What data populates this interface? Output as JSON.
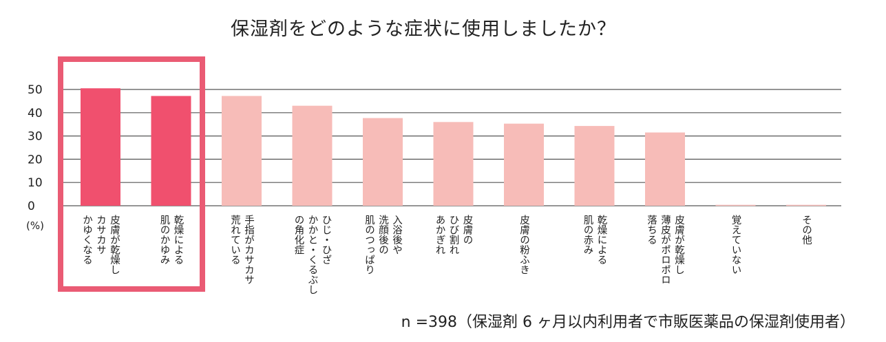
{
  "chart_data": {
    "type": "bar",
    "title": "保湿剤をどのような症状に使用しましたか？",
    "ylabel": "(%)",
    "ylim": [
      0,
      50
    ],
    "yticks": [
      "0",
      "10",
      "20",
      "30",
      "40",
      "50"
    ],
    "grid": true,
    "categories": [
      [
        "皮膚が乾燥し",
        "カサカサ",
        "かゆくなる"
      ],
      [
        "乾燥による",
        "肌のかゆみ"
      ],
      [
        "手指がカサカサ",
        "荒れている"
      ],
      [
        "ひじ・ひざ",
        "かかと・くるぶし",
        "の角化症"
      ],
      [
        "入浴後や",
        "洗顔後の",
        "肌のつっぱり"
      ],
      [
        "皮膚の",
        "ひび割れ",
        "あかぎれ"
      ],
      [
        "皮膚の粉ふき"
      ],
      [
        "乾燥による",
        "肌の赤み"
      ],
      [
        "皮膚が乾燥し",
        "薄皮がポロポロ",
        "落ちる"
      ],
      [
        "覚えていない"
      ],
      [
        "その他"
      ]
    ],
    "values": [
      50.5,
      47.2,
      47.2,
      43.0,
      37.7,
      36.0,
      35.3,
      34.3,
      31.5,
      0.4,
      0.4
    ],
    "highlighted": [
      true,
      true,
      false,
      false,
      false,
      false,
      false,
      false,
      false,
      false,
      false
    ],
    "colors": {
      "highlight": "#f0506e",
      "normal": "#f7bcb8",
      "box": "#ea5b74",
      "grid": "#555555"
    },
    "note": "n =398（保湿剤 6 ヶ月以内利用者で市販医薬品の保湿剤使用者）"
  }
}
